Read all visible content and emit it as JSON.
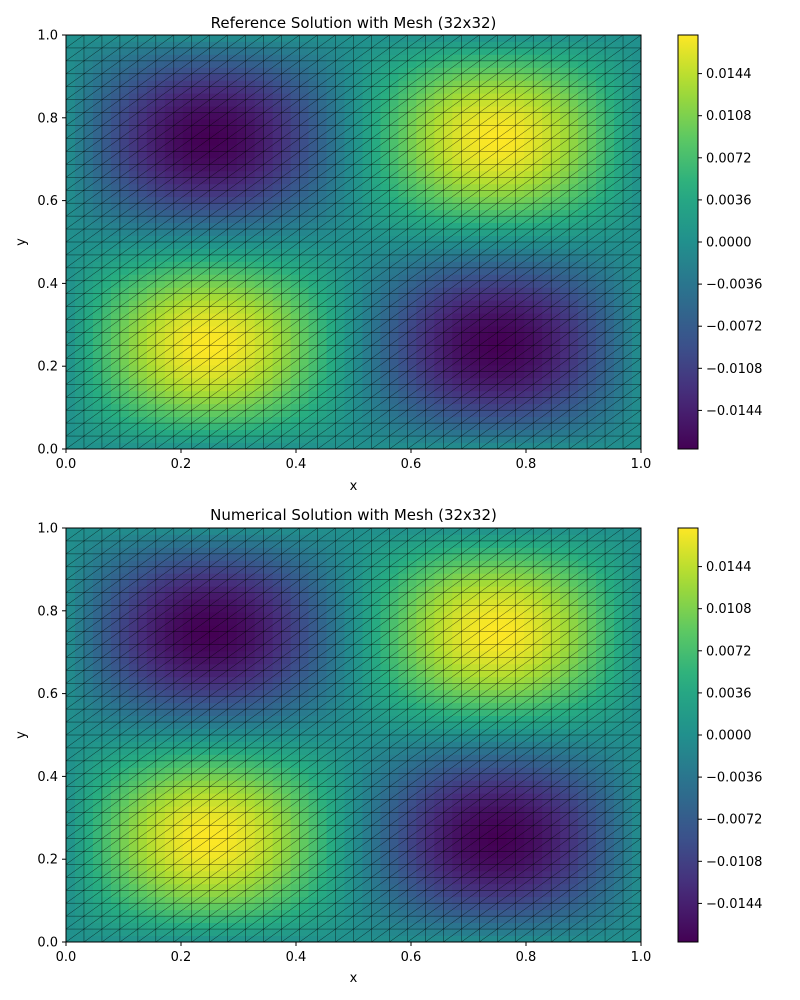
{
  "colors": {
    "colormap": "viridis",
    "mesh_line": "#000000",
    "frame": "#000000"
  },
  "chart_data": [
    {
      "type": "heatmap",
      "title": "Reference Solution with Mesh (32x32)",
      "xlabel": "x",
      "ylabel": "y",
      "xlim": [
        0,
        1
      ],
      "ylim": [
        0,
        1
      ],
      "x_ticks": [
        "0.0",
        "0.2",
        "0.4",
        "0.6",
        "0.8",
        "1.0"
      ],
      "y_ticks": [
        "0.0",
        "0.2",
        "0.4",
        "0.6",
        "0.8",
        "1.0"
      ],
      "mesh": "32x32 triangulated grid",
      "field_peaks": [
        {
          "x": 0.25,
          "y": 0.25,
          "value": 0.0177
        },
        {
          "x": 0.75,
          "y": 0.75,
          "value": 0.0177
        },
        {
          "x": 0.25,
          "y": 0.75,
          "value": -0.0177
        },
        {
          "x": 0.75,
          "y": 0.25,
          "value": -0.0177
        }
      ],
      "colorbar": {
        "range": [
          -0.0177,
          0.0177
        ],
        "tick_values": [
          0.0144,
          0.0108,
          0.0072,
          0.0036,
          0.0,
          -0.0036,
          -0.0072,
          -0.0108,
          -0.0144
        ],
        "tick_labels": [
          "0.0144",
          "0.0108",
          "0.0072",
          "0.0036",
          "0.0000",
          "−0.0036",
          "−0.0072",
          "−0.0108",
          "−0.0144"
        ]
      }
    },
    {
      "type": "heatmap",
      "title": "Numerical Solution with Mesh (32x32)",
      "xlabel": "x",
      "ylabel": "y",
      "xlim": [
        0,
        1
      ],
      "ylim": [
        0,
        1
      ],
      "x_ticks": [
        "0.0",
        "0.2",
        "0.4",
        "0.6",
        "0.8",
        "1.0"
      ],
      "y_ticks": [
        "0.0",
        "0.2",
        "0.4",
        "0.6",
        "0.8",
        "1.0"
      ],
      "mesh": "32x32 triangulated grid",
      "field_peaks": [
        {
          "x": 0.25,
          "y": 0.25,
          "value": 0.0177
        },
        {
          "x": 0.75,
          "y": 0.75,
          "value": 0.0177
        },
        {
          "x": 0.25,
          "y": 0.75,
          "value": -0.0177
        },
        {
          "x": 0.75,
          "y": 0.25,
          "value": -0.0177
        }
      ],
      "colorbar": {
        "range": [
          -0.0177,
          0.0177
        ],
        "tick_values": [
          0.0144,
          0.0108,
          0.0072,
          0.0036,
          0.0,
          -0.0036,
          -0.0072,
          -0.0108,
          -0.0144
        ],
        "tick_labels": [
          "0.0144",
          "0.0108",
          "0.0072",
          "0.0036",
          "0.0000",
          "−0.0036",
          "−0.0072",
          "−0.0108",
          "−0.0144"
        ]
      }
    }
  ]
}
